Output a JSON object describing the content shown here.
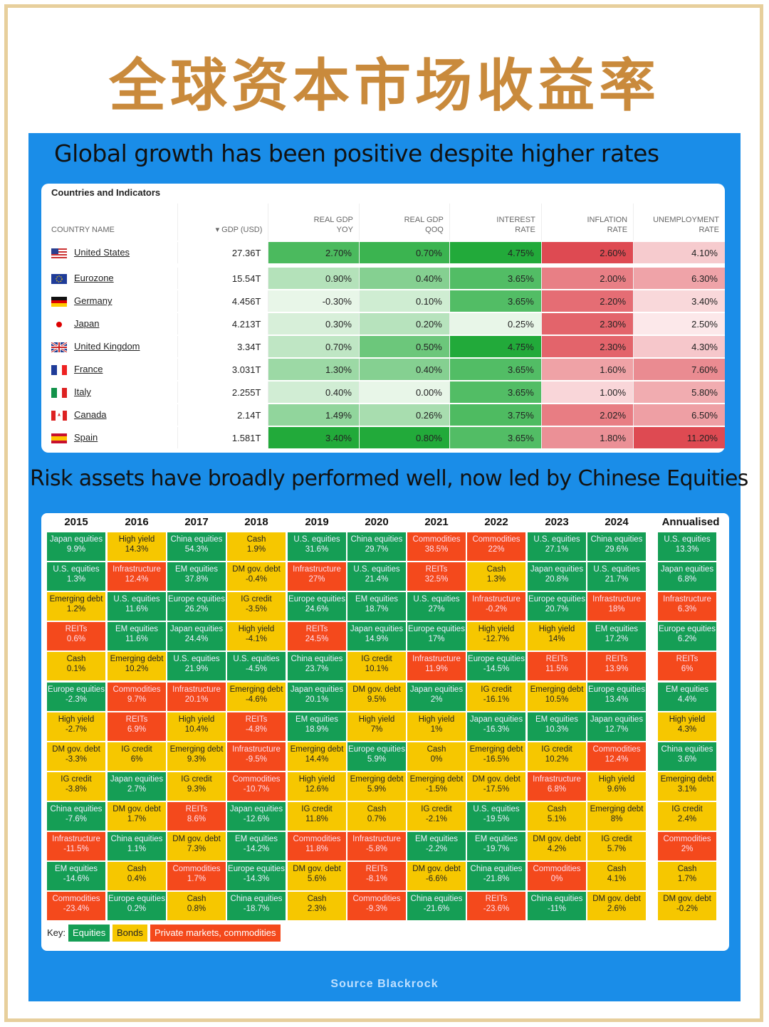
{
  "page_title": "全球资本市场收益率",
  "section1_title": "Global growth has been positive despite higher rates",
  "section2_title": "Risk assets have broadly performed well, now led by Chinese Equities",
  "source": "Source Blackrock",
  "indicators_table": {
    "card_title": "Countries and Indicators",
    "headers": [
      "COUNTRY NAME",
      "▾ GDP (USD)",
      "REAL GDP YOY",
      "REAL GDP QOQ",
      "INTEREST RATE",
      "INFLATION RATE",
      "UNEMPLOYMENT RATE"
    ],
    "rows": [
      {
        "country": "United States",
        "gdp": "27.36T",
        "yoy": "2.70%",
        "qoq": "0.70%",
        "rate": "4.75%",
        "infl": "2.60%",
        "unemp": "4.10%"
      },
      {
        "country": "Eurozone",
        "gdp": "15.54T",
        "yoy": "0.90%",
        "qoq": "0.40%",
        "rate": "3.65%",
        "infl": "2.00%",
        "unemp": "6.30%"
      },
      {
        "country": "Germany",
        "gdp": "4.456T",
        "yoy": "-0.30%",
        "qoq": "0.10%",
        "rate": "3.65%",
        "infl": "2.20%",
        "unemp": "3.40%"
      },
      {
        "country": "Japan",
        "gdp": "4.213T",
        "yoy": "0.30%",
        "qoq": "0.20%",
        "rate": "0.25%",
        "infl": "2.30%",
        "unemp": "2.50%"
      },
      {
        "country": "United Kingdom",
        "gdp": "3.34T",
        "yoy": "0.70%",
        "qoq": "0.50%",
        "rate": "4.75%",
        "infl": "2.30%",
        "unemp": "4.30%"
      },
      {
        "country": "France",
        "gdp": "3.031T",
        "yoy": "1.30%",
        "qoq": "0.40%",
        "rate": "3.65%",
        "infl": "1.60%",
        "unemp": "7.60%"
      },
      {
        "country": "Italy",
        "gdp": "2.255T",
        "yoy": "0.40%",
        "qoq": "0.00%",
        "rate": "3.65%",
        "infl": "1.00%",
        "unemp": "5.80%"
      },
      {
        "country": "Canada",
        "gdp": "2.14T",
        "yoy": "1.49%",
        "qoq": "0.26%",
        "rate": "3.75%",
        "infl": "2.02%",
        "unemp": "6.50%"
      },
      {
        "country": "Spain",
        "gdp": "1.581T",
        "yoy": "3.40%",
        "qoq": "0.80%",
        "rate": "3.65%",
        "infl": "1.80%",
        "unemp": "11.20%"
      }
    ]
  },
  "chart_data": {
    "type": "table",
    "columns": [
      "2015",
      "2016",
      "2017",
      "2018",
      "2019",
      "2020",
      "2021",
      "2022",
      "2023",
      "2024",
      "Annualised"
    ],
    "key": {
      "label": "Key:",
      "entries": [
        {
          "name": "Equities",
          "color": "#159e55"
        },
        {
          "name": "Bonds",
          "color": "#f6c700"
        },
        {
          "name": "Private markets, commodities",
          "color": "#f4491c"
        }
      ]
    },
    "grid": [
      [
        [
          "Japan equities",
          "9.9%",
          "eq"
        ],
        [
          "U.S. equities",
          "1.3%",
          "eq"
        ],
        [
          "Emerging debt",
          "1.2%",
          "bd"
        ],
        [
          "REITs",
          "0.6%",
          "pm"
        ],
        [
          "Cash",
          "0.1%",
          "bd"
        ],
        [
          "Europe equities",
          "-2.3%",
          "eq"
        ],
        [
          "High yield",
          "-2.7%",
          "bd"
        ],
        [
          "DM gov. debt",
          "-3.3%",
          "bd"
        ],
        [
          "IG credit",
          "-3.8%",
          "bd"
        ],
        [
          "China equities",
          "-7.6%",
          "eq"
        ],
        [
          "Infrastructure",
          "-11.5%",
          "pm"
        ],
        [
          "EM equities",
          "-14.6%",
          "eq"
        ],
        [
          "Commodities",
          "-23.4%",
          "pm"
        ]
      ],
      [
        [
          "High yield",
          "14.3%",
          "bd"
        ],
        [
          "Infrastructure",
          "12.4%",
          "pm"
        ],
        [
          "U.S. equities",
          "11.6%",
          "eq"
        ],
        [
          "EM equities",
          "11.6%",
          "eq"
        ],
        [
          "Emerging debt",
          "10.2%",
          "bd"
        ],
        [
          "Commodities",
          "9.7%",
          "pm"
        ],
        [
          "REITs",
          "6.9%",
          "pm"
        ],
        [
          "IG credit",
          "6%",
          "bd"
        ],
        [
          "Japan equities",
          "2.7%",
          "eq"
        ],
        [
          "DM gov. debt",
          "1.7%",
          "bd"
        ],
        [
          "China equities",
          "1.1%",
          "eq"
        ],
        [
          "Cash",
          "0.4%",
          "bd"
        ],
        [
          "Europe equities",
          "0.2%",
          "eq"
        ]
      ],
      [
        [
          "China equities",
          "54.3%",
          "eq"
        ],
        [
          "EM equities",
          "37.8%",
          "eq"
        ],
        [
          "Europe equities",
          "26.2%",
          "eq"
        ],
        [
          "Japan equities",
          "24.4%",
          "eq"
        ],
        [
          "U.S. equities",
          "21.9%",
          "eq"
        ],
        [
          "Infrastructure",
          "20.1%",
          "pm"
        ],
        [
          "High yield",
          "10.4%",
          "bd"
        ],
        [
          "Emerging debt",
          "9.3%",
          "bd"
        ],
        [
          "IG credit",
          "9.3%",
          "bd"
        ],
        [
          "REITs",
          "8.6%",
          "pm"
        ],
        [
          "DM gov. debt",
          "7.3%",
          "bd"
        ],
        [
          "Commodities",
          "1.7%",
          "pm"
        ],
        [
          "Cash",
          "0.8%",
          "bd"
        ]
      ],
      [
        [
          "Cash",
          "1.9%",
          "bd"
        ],
        [
          "DM gov. debt",
          "-0.4%",
          "bd"
        ],
        [
          "IG credit",
          "-3.5%",
          "bd"
        ],
        [
          "High yield",
          "-4.1%",
          "bd"
        ],
        [
          "U.S. equities",
          "-4.5%",
          "eq"
        ],
        [
          "Emerging debt",
          "-4.6%",
          "bd"
        ],
        [
          "REITs",
          "-4.8%",
          "pm"
        ],
        [
          "Infrastructure",
          "-9.5%",
          "pm"
        ],
        [
          "Commodities",
          "-10.7%",
          "pm"
        ],
        [
          "Japan equities",
          "-12.6%",
          "eq"
        ],
        [
          "EM equities",
          "-14.2%",
          "eq"
        ],
        [
          "Europe equities",
          "-14.3%",
          "eq"
        ],
        [
          "China equities",
          "-18.7%",
          "eq"
        ]
      ],
      [
        [
          "U.S. equities",
          "31.6%",
          "eq"
        ],
        [
          "Infrastructure",
          "27%",
          "pm"
        ],
        [
          "Europe equities",
          "24.6%",
          "eq"
        ],
        [
          "REITs",
          "24.5%",
          "pm"
        ],
        [
          "China equities",
          "23.7%",
          "eq"
        ],
        [
          "Japan equities",
          "20.1%",
          "eq"
        ],
        [
          "EM equities",
          "18.9%",
          "eq"
        ],
        [
          "Emerging debt",
          "14.4%",
          "bd"
        ],
        [
          "High yield",
          "12.6%",
          "bd"
        ],
        [
          "IG credit",
          "11.8%",
          "bd"
        ],
        [
          "Commodities",
          "11.8%",
          "pm"
        ],
        [
          "DM gov. debt",
          "5.6%",
          "bd"
        ],
        [
          "Cash",
          "2.3%",
          "bd"
        ]
      ],
      [
        [
          "China equities",
          "29.7%",
          "eq"
        ],
        [
          "U.S. equities",
          "21.4%",
          "eq"
        ],
        [
          "EM equities",
          "18.7%",
          "eq"
        ],
        [
          "Japan equities",
          "14.9%",
          "eq"
        ],
        [
          "IG credit",
          "10.1%",
          "bd"
        ],
        [
          "DM gov. debt",
          "9.5%",
          "bd"
        ],
        [
          "High yield",
          "7%",
          "bd"
        ],
        [
          "Europe equities",
          "5.9%",
          "eq"
        ],
        [
          "Emerging debt",
          "5.9%",
          "bd"
        ],
        [
          "Cash",
          "0.7%",
          "bd"
        ],
        [
          "Infrastructure",
          "-5.8%",
          "pm"
        ],
        [
          "REITs",
          "-8.1%",
          "pm"
        ],
        [
          "Commodities",
          "-9.3%",
          "pm"
        ]
      ],
      [
        [
          "Commodities",
          "38.5%",
          "pm"
        ],
        [
          "REITs",
          "32.5%",
          "pm"
        ],
        [
          "U.S. equities",
          "27%",
          "eq"
        ],
        [
          "Europe equities",
          "17%",
          "eq"
        ],
        [
          "Infrastructure",
          "11.9%",
          "pm"
        ],
        [
          "Japan equities",
          "2%",
          "eq"
        ],
        [
          "High yield",
          "1%",
          "bd"
        ],
        [
          "Cash",
          "0%",
          "bd"
        ],
        [
          "Emerging debt",
          "-1.5%",
          "bd"
        ],
        [
          "IG credit",
          "-2.1%",
          "bd"
        ],
        [
          "EM equities",
          "-2.2%",
          "eq"
        ],
        [
          "DM gov. debt",
          "-6.6%",
          "bd"
        ],
        [
          "China equities",
          "-21.6%",
          "eq"
        ]
      ],
      [
        [
          "Commodities",
          "22%",
          "pm"
        ],
        [
          "Cash",
          "1.3%",
          "bd"
        ],
        [
          "Infrastructure",
          "-0.2%",
          "pm"
        ],
        [
          "High yield",
          "-12.7%",
          "bd"
        ],
        [
          "Europe equities",
          "-14.5%",
          "eq"
        ],
        [
          "IG credit",
          "-16.1%",
          "bd"
        ],
        [
          "Japan equities",
          "-16.3%",
          "eq"
        ],
        [
          "Emerging debt",
          "-16.5%",
          "bd"
        ],
        [
          "DM gov. debt",
          "-17.5%",
          "bd"
        ],
        [
          "U.S. equities",
          "-19.5%",
          "eq"
        ],
        [
          "EM equities",
          "-19.7%",
          "eq"
        ],
        [
          "China equities",
          "-21.8%",
          "eq"
        ],
        [
          "REITs",
          "-23.6%",
          "pm"
        ]
      ],
      [
        [
          "U.S. equities",
          "27.1%",
          "eq"
        ],
        [
          "Japan equities",
          "20.8%",
          "eq"
        ],
        [
          "Europe equities",
          "20.7%",
          "eq"
        ],
        [
          "High yield",
          "14%",
          "bd"
        ],
        [
          "REITs",
          "11.5%",
          "pm"
        ],
        [
          "Emerging debt",
          "10.5%",
          "bd"
        ],
        [
          "EM equities",
          "10.3%",
          "eq"
        ],
        [
          "IG credit",
          "10.2%",
          "bd"
        ],
        [
          "Infrastructure",
          "6.8%",
          "pm"
        ],
        [
          "Cash",
          "5.1%",
          "bd"
        ],
        [
          "DM gov. debt",
          "4.2%",
          "bd"
        ],
        [
          "Commodities",
          "0%",
          "pm"
        ],
        [
          "China equities",
          "-11%",
          "eq"
        ]
      ],
      [
        [
          "China equities",
          "29.6%",
          "eq"
        ],
        [
          "U.S. equities",
          "21.7%",
          "eq"
        ],
        [
          "Infrastructure",
          "18%",
          "pm"
        ],
        [
          "EM equities",
          "17.2%",
          "eq"
        ],
        [
          "REITs",
          "13.9%",
          "pm"
        ],
        [
          "Europe equities",
          "13.4%",
          "eq"
        ],
        [
          "Japan equities",
          "12.7%",
          "eq"
        ],
        [
          "Commodities",
          "12.4%",
          "pm"
        ],
        [
          "High yield",
          "9.6%",
          "bd"
        ],
        [
          "Emerging debt",
          "8%",
          "bd"
        ],
        [
          "IG credit",
          "5.7%",
          "bd"
        ],
        [
          "Cash",
          "4.1%",
          "bd"
        ],
        [
          "DM gov. debt",
          "2.6%",
          "bd"
        ]
      ],
      [
        [
          "U.S. equities",
          "13.3%",
          "eq"
        ],
        [
          "Japan equities",
          "6.8%",
          "eq"
        ],
        [
          "Infrastructure",
          "6.3%",
          "pm"
        ],
        [
          "Europe equities",
          "6.2%",
          "eq"
        ],
        [
          "REITs",
          "6%",
          "pm"
        ],
        [
          "EM equities",
          "4.4%",
          "eq"
        ],
        [
          "High yield",
          "4.3%",
          "bd"
        ],
        [
          "China equities",
          "3.6%",
          "eq"
        ],
        [
          "Emerging debt",
          "3.1%",
          "bd"
        ],
        [
          "IG credit",
          "2.4%",
          "bd"
        ],
        [
          "Commodities",
          "2%",
          "pm"
        ],
        [
          "Cash",
          "1.7%",
          "bd"
        ],
        [
          "DM gov. debt",
          "-0.2%",
          "bd"
        ]
      ]
    ]
  }
}
